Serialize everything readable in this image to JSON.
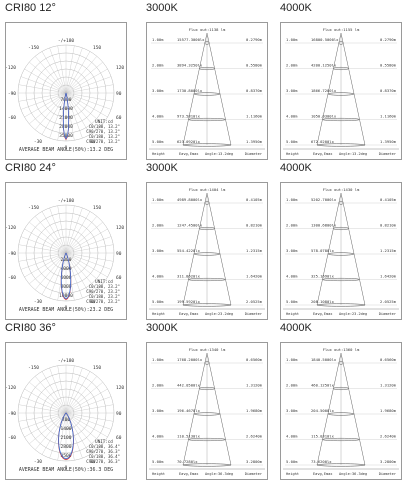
{
  "rows": [
    {
      "title": "CRI80  12°",
      "polar": {
        "angles": [
          "-/+180",
          "-150",
          "150",
          "-120",
          "120",
          "-90",
          "90",
          "-60",
          "60",
          "-30",
          "30",
          "0"
        ],
        "radial": [
          "7000",
          "14000",
          "21000",
          "28000",
          "35000"
        ],
        "unit": "UNIT:cd",
        "legend": [
          "C0/180, 13.2°",
          "C90/270, 13.2°",
          "C0/180, 13.2°",
          "C90/270, 13.2°"
        ],
        "footer": "AVERAGE BEAM ANGLE(50%):13.2 DEG"
      },
      "cones": [
        {
          "title": "3000K",
          "flux_line": "Flux out:1138 lm",
          "rows": [
            {
              "h": "1.00m",
              "e": "15577.3000lx",
              "d": "0.2790m"
            },
            {
              "h": "2.00m",
              "e": "3894.3250lx",
              "d": "0.5580m"
            },
            {
              "h": "3.00m",
              "e": "1730.8000lx",
              "d": "0.8370m"
            },
            {
              "h": "4.00m",
              "e": "973.5810lx",
              "d": "1.1160m"
            },
            {
              "h": "5.00m",
              "e": "623.0920lx",
              "d": "1.3950m"
            }
          ],
          "footer": [
            "Height",
            "Eavg,Emax",
            "Angle:13.2deg",
            "Diameter"
          ]
        },
        {
          "title": "4000K",
          "flux_line": "Flux out:1155 lm",
          "rows": [
            {
              "h": "1.00m",
              "e": "16800.5000lx",
              "d": "0.2790m"
            },
            {
              "h": "2.00m",
              "e": "4200.1250lx",
              "d": "0.5580m"
            },
            {
              "h": "3.00m",
              "e": "1866.7200lx",
              "d": "0.8370m"
            },
            {
              "h": "4.00m",
              "e": "1050.0300lx",
              "d": "1.1160m"
            },
            {
              "h": "5.00m",
              "e": "672.0200lx",
              "d": "1.3950m"
            }
          ],
          "footer": [
            "Height",
            "Eavg,Emax",
            "Angle:13.2deg",
            "Diameter"
          ]
        }
      ]
    },
    {
      "title": "CRI80  24°",
      "polar": {
        "angles": [
          "-/+180",
          "-150",
          "150",
          "-120",
          "120",
          "-90",
          "90",
          "-60",
          "60",
          "-30",
          "30",
          "0"
        ],
        "radial": [
          "2000",
          "4000",
          "6000",
          "8000",
          "10000"
        ],
        "unit": "UNIT:cd",
        "legend": [
          "C0/180, 23.2°",
          "C90/270, 23.2°",
          "C0/180, 23.2°",
          "C90/270, 23.2°"
        ],
        "footer": "AVERAGE BEAM ANGLE(50%):23.2 DEG"
      },
      "cones": [
        {
          "title": "3000K",
          "flux_line": "Flux out:1404 lm",
          "rows": [
            {
              "h": "1.00m",
              "e": "4989.8000lx",
              "d": "0.4105m"
            },
            {
              "h": "2.00m",
              "e": "1247.4500lx",
              "d": "0.8210m"
            },
            {
              "h": "3.00m",
              "e": "554.4220lx",
              "d": "1.2315m"
            },
            {
              "h": "4.00m",
              "e": "311.8620lx",
              "d": "1.6420m"
            },
            {
              "h": "5.00m",
              "e": "199.5920lx",
              "d": "2.0525m"
            }
          ],
          "footer": [
            "Height",
            "Eavg,Emax",
            "Angle:23.2deg",
            "Diameter"
          ]
        },
        {
          "title": "4000K",
          "flux_line": "Flux out:1430 lm",
          "rows": [
            {
              "h": "1.00m",
              "e": "5202.7000lx",
              "d": "0.4105m"
            },
            {
              "h": "2.00m",
              "e": "1300.6800lx",
              "d": "0.8210m"
            },
            {
              "h": "3.00m",
              "e": "578.0780lx",
              "d": "1.2315m"
            },
            {
              "h": "4.00m",
              "e": "325.1690lx",
              "d": "1.6420m"
            },
            {
              "h": "5.00m",
              "e": "208.1080lx",
              "d": "2.0525m"
            }
          ],
          "footer": [
            "Height",
            "Eavg,Emax",
            "Angle:23.2deg",
            "Diameter"
          ]
        }
      ]
    },
    {
      "title": "CRI80  36°",
      "polar": {
        "angles": [
          "-/+180",
          "-150",
          "150",
          "-120",
          "120",
          "-90",
          "90",
          "-60",
          "60",
          "-30",
          "30",
          "0"
        ],
        "radial": [
          "700",
          "1400",
          "2100",
          "2800",
          "3500"
        ],
        "unit": "UNIT:cd",
        "legend": [
          "C0/180, 36.4°",
          "C90/270, 36.3°",
          "C0/180, 36.4°",
          "C90/270, 36.3°"
        ],
        "footer": "AVERAGE BEAM ANGLE(50%):36.3 DEG"
      },
      "cones": [
        {
          "title": "3000K",
          "flux_line": "Flux out:1340 lm",
          "rows": [
            {
              "h": "1.00m",
              "e": "1768.2000lx",
              "d": "0.6560m"
            },
            {
              "h": "2.00m",
              "e": "442.0500lx",
              "d": "1.3120m"
            },
            {
              "h": "3.00m",
              "e": "196.4670lx",
              "d": "1.9680m"
            },
            {
              "h": "4.00m",
              "e": "110.5130lx",
              "d": "2.6240m"
            },
            {
              "h": "5.00m",
              "e": "70.7280lx",
              "d": "3.2800m"
            }
          ],
          "footer": [
            "Height",
            "Eavg,Emax",
            "Angle:36.3deg",
            "Diameter"
          ]
        },
        {
          "title": "4000K",
          "flux_line": "Flux out:1360 lm",
          "rows": [
            {
              "h": "1.00m",
              "e": "1840.5000lx",
              "d": "0.6560m"
            },
            {
              "h": "2.00m",
              "e": "460.1250lx",
              "d": "1.3120m"
            },
            {
              "h": "3.00m",
              "e": "204.5000lx",
              "d": "1.9680m"
            },
            {
              "h": "4.00m",
              "e": "115.0310lx",
              "d": "2.6240m"
            },
            {
              "h": "5.00m",
              "e": "73.6200lx",
              "d": "3.2800m"
            }
          ],
          "footer": [
            "Height",
            "Eavg,Emax",
            "Angle:36.3deg",
            "Diameter"
          ]
        }
      ]
    }
  ]
}
